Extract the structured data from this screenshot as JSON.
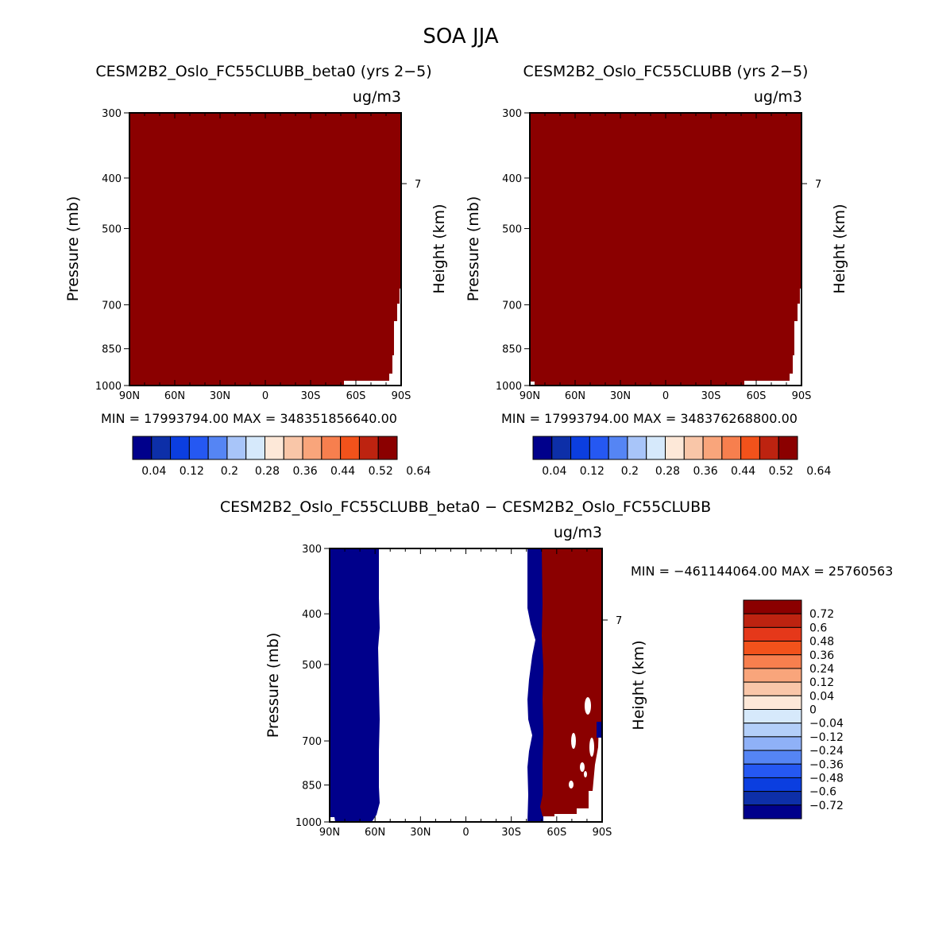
{
  "page_title": "SOA JJA",
  "chart_data": [
    {
      "type": "heatmap",
      "title": "CESM2B2_Oslo_FC55CLUBB_beta0 (yrs 2−5)",
      "units": "ug/m3",
      "ylabel": "Pressure (mb)",
      "ylabel_right": "Height (km)",
      "x_ticks": [
        "90N",
        "60N",
        "30N",
        "0",
        "30S",
        "60S",
        "90S"
      ],
      "y_ticks": [
        "300",
        "400",
        "500",
        "700",
        "850",
        "1000"
      ],
      "y_ticks_right": [
        "7"
      ],
      "ylim": [
        1000,
        300
      ],
      "stats": "MIN = 17993794.00   MAX = 348351856640.00",
      "fill": "saturated above top level (0.64)",
      "colorbar_labels": [
        "0.04",
        "0.12",
        "0.2",
        "0.28",
        "0.36",
        "0.44",
        "0.52",
        "0.64"
      ]
    },
    {
      "type": "heatmap",
      "title": "CESM2B2_Oslo_FC55CLUBB (yrs 2−5)",
      "units": "ug/m3",
      "ylabel": "Pressure (mb)",
      "ylabel_right": "Height (km)",
      "x_ticks": [
        "90N",
        "60N",
        "30N",
        "0",
        "30S",
        "60S",
        "90S"
      ],
      "y_ticks": [
        "300",
        "400",
        "500",
        "700",
        "850",
        "1000"
      ],
      "y_ticks_right": [
        "7"
      ],
      "ylim": [
        1000,
        300
      ],
      "stats": "MIN = 17993794.00   MAX = 348376268800.00",
      "fill": "saturated above top level (0.64)",
      "colorbar_labels": [
        "0.04",
        "0.12",
        "0.2",
        "0.28",
        "0.36",
        "0.44",
        "0.52",
        "0.64"
      ]
    },
    {
      "type": "heatmap",
      "title": "CESM2B2_Oslo_FC55CLUBB_beta0 − CESM2B2_Oslo_FC55CLUBB",
      "units": "ug/m3",
      "ylabel": "Pressure (mb)",
      "ylabel_right": "Height (km)",
      "x_ticks": [
        "90N",
        "60N",
        "30N",
        "0",
        "30S",
        "60S",
        "90S"
      ],
      "y_ticks": [
        "300",
        "400",
        "500",
        "700",
        "850",
        "1000"
      ],
      "y_ticks_right": [
        "7"
      ],
      "ylim": [
        1000,
        300
      ],
      "stats": "MIN = −461144064.00   MAX = 25760563",
      "fill_regions": [
        {
          "lat_from": "90N",
          "lat_to": "~58N",
          "value": "below -0.72"
        },
        {
          "lat_from": "~42S",
          "lat_to": "~50S",
          "value": "below -0.72"
        },
        {
          "lat_from": "~50S",
          "lat_to": "90S",
          "value": "above 0.72"
        }
      ],
      "colorbar_labels": [
        "0.72",
        "0.6",
        "0.48",
        "0.36",
        "0.24",
        "0.12",
        "0.04",
        "0",
        "−0.04",
        "−0.12",
        "−0.24",
        "−0.36",
        "−0.48",
        "−0.6",
        "−0.72"
      ]
    }
  ],
  "colors": {
    "panel_fill": "#8b0000",
    "diff_negative": "#00008b",
    "colorbar_a": [
      "#00008b",
      "#0d2fa8",
      "#0b3ee0",
      "#2558f2",
      "#5585f4",
      "#a8c5f9",
      "#d6e9fb",
      "#fde8d8",
      "#f9c6a8",
      "#f9a57b",
      "#f77f4e",
      "#f2521b",
      "#bd2310",
      "#8b0000"
    ],
    "colorbar_b": [
      "#8b0000",
      "#bd2310",
      "#e5381a",
      "#f2521b",
      "#f77f4e",
      "#f9a57b",
      "#f9c6a8",
      "#fde8d8",
      "#d6e9fb",
      "#b3cff9",
      "#8fb1f7",
      "#5585f4",
      "#2558f2",
      "#0b3ee0",
      "#0d2fa8",
      "#00008b"
    ]
  }
}
